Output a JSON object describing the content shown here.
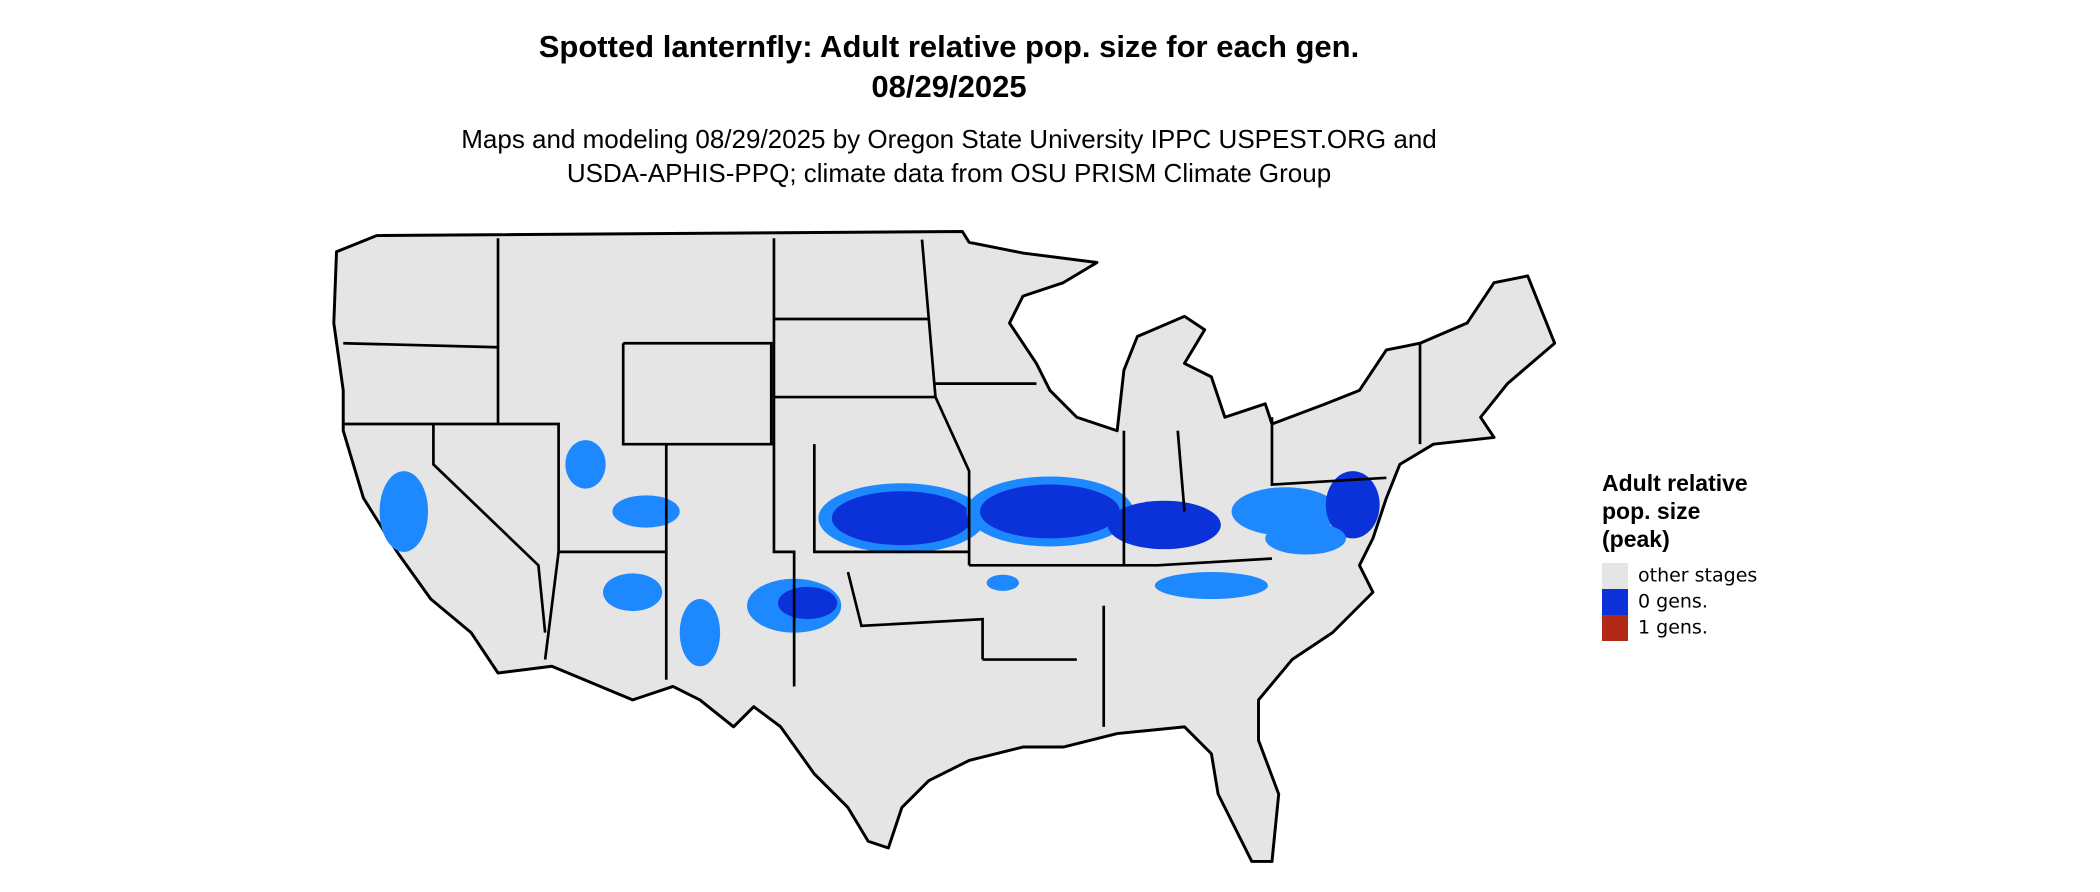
{
  "header": {
    "title": [
      "Spotted lanternfly: Adult relative pop. size for each gen.",
      "08/29/2025"
    ],
    "subtitle": [
      "Maps and modeling 08/29/2025 by Oregon State University IPPC USPEST.ORG and",
      "USDA-APHIS-PPQ; climate data from OSU PRISM Climate Group"
    ]
  },
  "legend": {
    "title": [
      "Adult relative",
      "pop. size",
      "(peak)"
    ],
    "items": [
      {
        "label": "other stages",
        "color": "#e5e5e5"
      },
      {
        "label": "0 gens.",
        "color": "#0a32d8"
      },
      {
        "label": "1 gens.",
        "color": "#b22a17"
      }
    ]
  }
}
